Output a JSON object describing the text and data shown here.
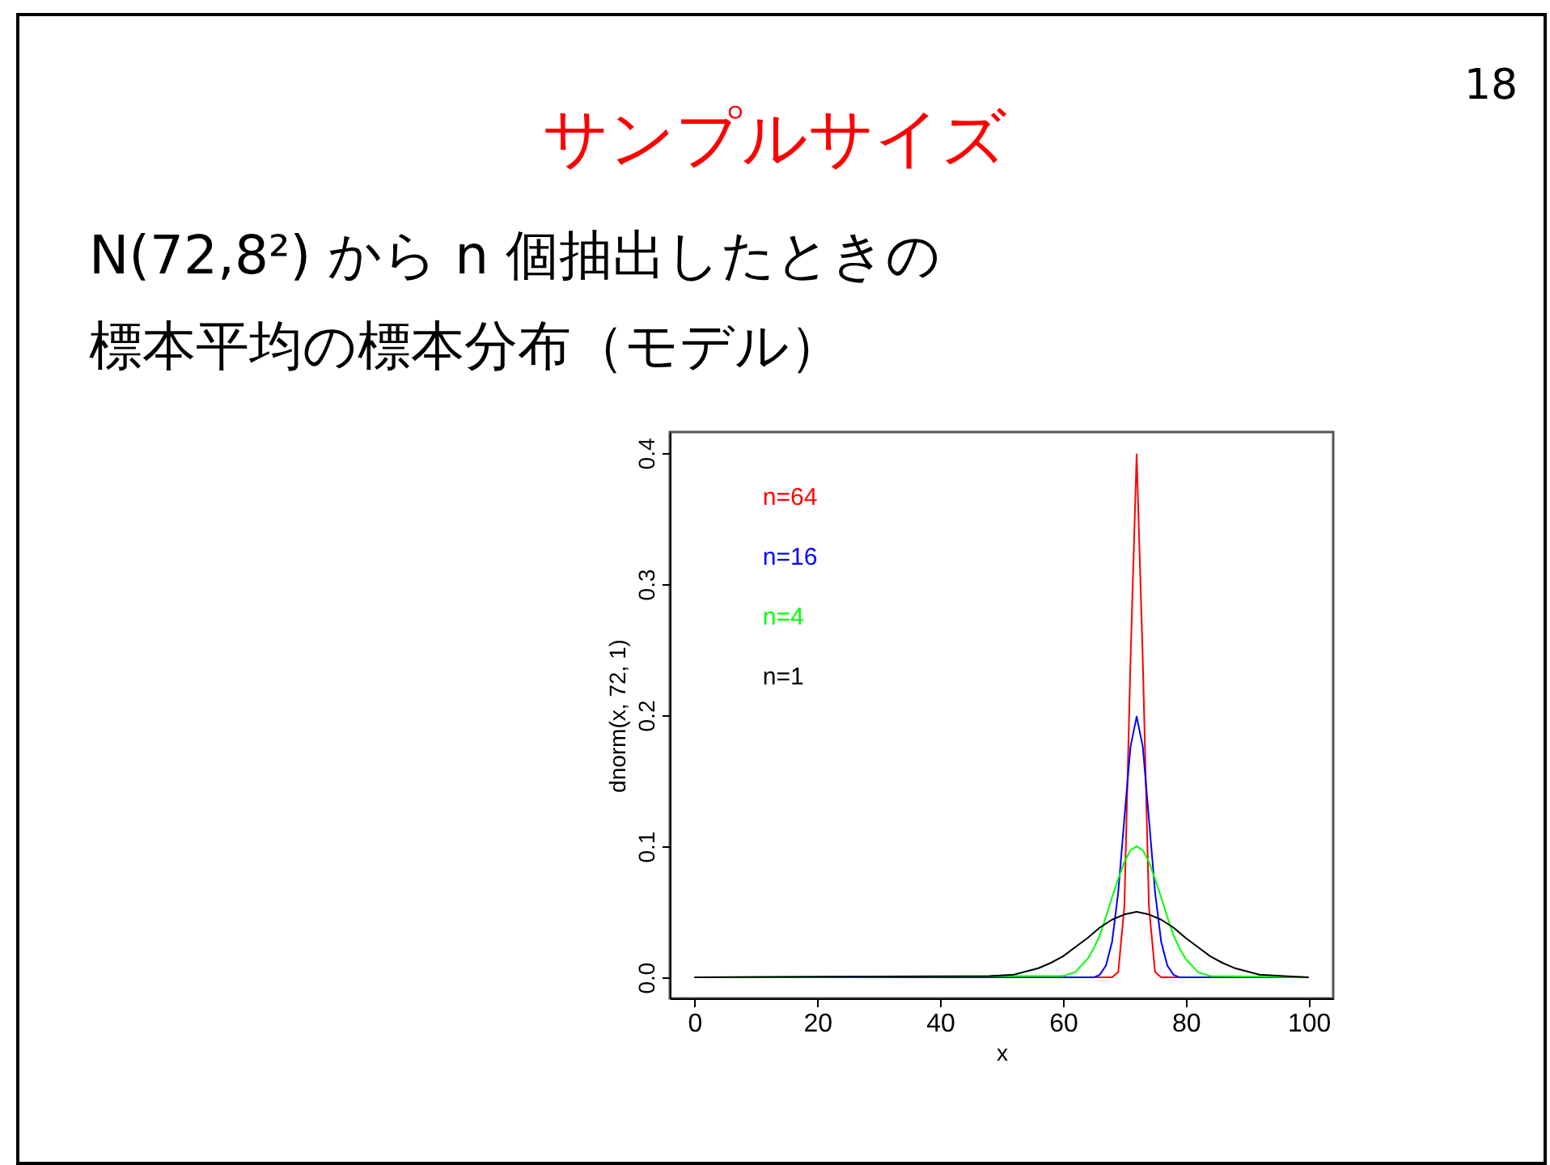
{
  "chart_data": {
    "type": "line",
    "title": "サンプルサイズ",
    "subtitle": "N(72,8²) から n 個抽出したときの標本平均の標本分布（モデル）",
    "xlabel": "x",
    "ylabel": "dnorm(x, 72, 1)",
    "annotations": [
      "18"
    ],
    "xlim": [
      -4,
      104
    ],
    "xticks": [
      0,
      20,
      40,
      60,
      80,
      100
    ],
    "ylim": [
      -0.016,
      0.416
    ],
    "yticks": [
      {
        "value": 0,
        "label": "0.0"
      },
      {
        "value": 0.1,
        "label": "0.1"
      },
      {
        "value": 0.2,
        "label": "0.2"
      },
      {
        "value": 0.3,
        "label": "0.3"
      },
      {
        "value": 0.4,
        "label": "0.4"
      }
    ],
    "legend": "top left",
    "grid": false,
    "series": [
      {
        "name": "n=64",
        "color": "#ff0000",
        "x": [
          0,
          67,
          68,
          69,
          70,
          71,
          72,
          73,
          74,
          75,
          76,
          77,
          100
        ],
        "values": [
          0,
          0,
          0.0,
          0.004,
          0.054,
          0.242,
          0.399,
          0.242,
          0.054,
          0.004,
          0.0,
          0,
          0
        ]
      },
      {
        "name": "n=16",
        "color": "#0000ff",
        "x": [
          0,
          65,
          66,
          67,
          68,
          69,
          70,
          71,
          72,
          73,
          74,
          75,
          76,
          77,
          78,
          79,
          100
        ],
        "values": [
          0,
          0.0,
          0.002,
          0.009,
          0.027,
          0.065,
          0.121,
          0.176,
          0.199,
          0.176,
          0.121,
          0.065,
          0.027,
          0.009,
          0.002,
          0.0,
          0
        ]
      },
      {
        "name": "n=4",
        "color": "#00ff00",
        "x": [
          0,
          60,
          62,
          64,
          65,
          66,
          67,
          68,
          69,
          70,
          71,
          72,
          73,
          74,
          75,
          76,
          77,
          78,
          79,
          80,
          82,
          84,
          100
        ],
        "values": [
          0,
          0.001,
          0.004,
          0.014,
          0.022,
          0.032,
          0.046,
          0.061,
          0.075,
          0.088,
          0.097,
          0.1,
          0.097,
          0.088,
          0.075,
          0.061,
          0.046,
          0.032,
          0.022,
          0.014,
          0.004,
          0.001,
          0
        ]
      },
      {
        "name": "n=1",
        "color": "#000000",
        "x": [
          0,
          48,
          52,
          56,
          58,
          60,
          62,
          64,
          66,
          68,
          70,
          72,
          74,
          76,
          78,
          80,
          82,
          84,
          86,
          88,
          92,
          96,
          100
        ],
        "values": [
          0,
          0.001,
          0.002,
          0.007,
          0.011,
          0.016,
          0.023,
          0.03,
          0.038,
          0.044,
          0.048,
          0.05,
          0.048,
          0.044,
          0.038,
          0.03,
          0.023,
          0.016,
          0.011,
          0.007,
          0.002,
          0.001,
          0
        ]
      }
    ]
  }
}
